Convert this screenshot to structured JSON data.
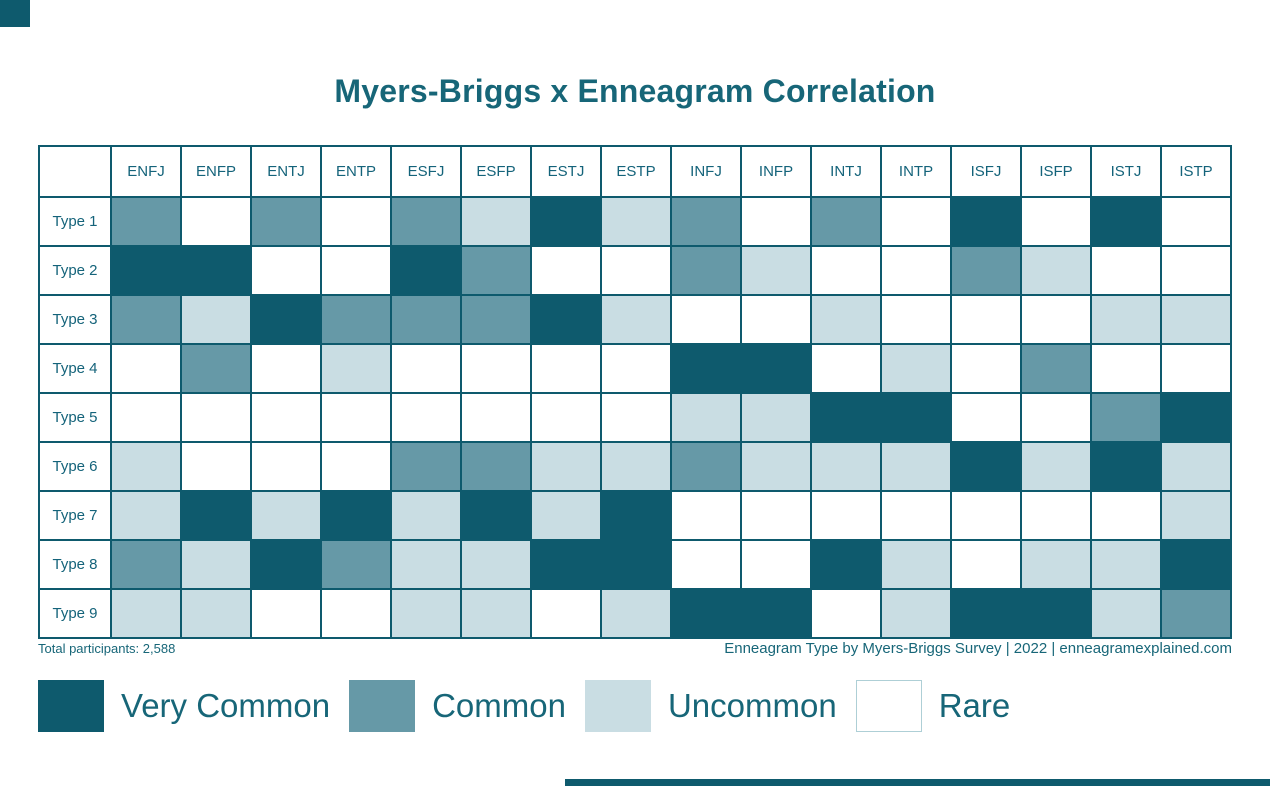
{
  "title": "Myers-Briggs x Enneagram Correlation",
  "colors": {
    "very_common": "#0E5A6D",
    "common": "#6699A7",
    "uncommon": "#C9DDE3",
    "rare": "#FFFFFF",
    "grid_border": "#0E5A6D",
    "text": "#176678"
  },
  "footer": {
    "left": "Total participants: 2,588",
    "right": "Enneagram Type by Myers-Briggs Survey | 2022 | enneagramexplained.com"
  },
  "legend": [
    {
      "label": "Very Common",
      "key": "very_common"
    },
    {
      "label": "Common",
      "key": "common"
    },
    {
      "label": "Uncommon",
      "key": "uncommon"
    },
    {
      "label": "Rare",
      "key": "rare"
    }
  ],
  "chart_data": {
    "type": "heatmap",
    "title": "Myers-Briggs x Enneagram Correlation",
    "columns": [
      "ENFJ",
      "ENFP",
      "ENTJ",
      "ENTP",
      "ESFJ",
      "ESFP",
      "ESTJ",
      "ESTP",
      "INFJ",
      "INFP",
      "INTJ",
      "INTP",
      "ISFJ",
      "ISFP",
      "ISTJ",
      "ISTP"
    ],
    "rows": [
      "Type 1",
      "Type 2",
      "Type 3",
      "Type 4",
      "Type 5",
      "Type 6",
      "Type 7",
      "Type 8",
      "Type 9"
    ],
    "code_labels": {
      "VC": "Very Common",
      "C": "Common",
      "U": "Uncommon",
      "R": "Rare"
    },
    "code_color_keys": {
      "VC": "very_common",
      "C": "common",
      "U": "uncommon",
      "R": "rare"
    },
    "cells": [
      [
        "C",
        "R",
        "C",
        "R",
        "C",
        "U",
        "VC",
        "U",
        "C",
        "R",
        "C",
        "R",
        "VC",
        "R",
        "VC",
        "R"
      ],
      [
        "VC",
        "VC",
        "R",
        "R",
        "VC",
        "C",
        "R",
        "R",
        "C",
        "U",
        "R",
        "R",
        "C",
        "U",
        "R",
        "R"
      ],
      [
        "C",
        "U",
        "VC",
        "C",
        "C",
        "C",
        "VC",
        "U",
        "R",
        "R",
        "U",
        "R",
        "R",
        "R",
        "U",
        "U"
      ],
      [
        "R",
        "C",
        "R",
        "U",
        "R",
        "R",
        "R",
        "R",
        "VC",
        "VC",
        "R",
        "U",
        "R",
        "C",
        "R",
        "R"
      ],
      [
        "R",
        "R",
        "R",
        "R",
        "R",
        "R",
        "R",
        "R",
        "U",
        "U",
        "VC",
        "VC",
        "R",
        "R",
        "C",
        "VC"
      ],
      [
        "U",
        "R",
        "R",
        "R",
        "C",
        "C",
        "U",
        "U",
        "C",
        "U",
        "U",
        "U",
        "VC",
        "U",
        "VC",
        "U"
      ],
      [
        "U",
        "VC",
        "U",
        "VC",
        "U",
        "VC",
        "U",
        "VC",
        "R",
        "R",
        "R",
        "R",
        "R",
        "R",
        "R",
        "U"
      ],
      [
        "C",
        "U",
        "VC",
        "C",
        "U",
        "U",
        "VC",
        "VC",
        "R",
        "R",
        "VC",
        "U",
        "R",
        "U",
        "U",
        "VC"
      ],
      [
        "U",
        "U",
        "R",
        "R",
        "U",
        "U",
        "R",
        "U",
        "VC",
        "VC",
        "R",
        "U",
        "VC",
        "VC",
        "U",
        "C"
      ]
    ]
  }
}
